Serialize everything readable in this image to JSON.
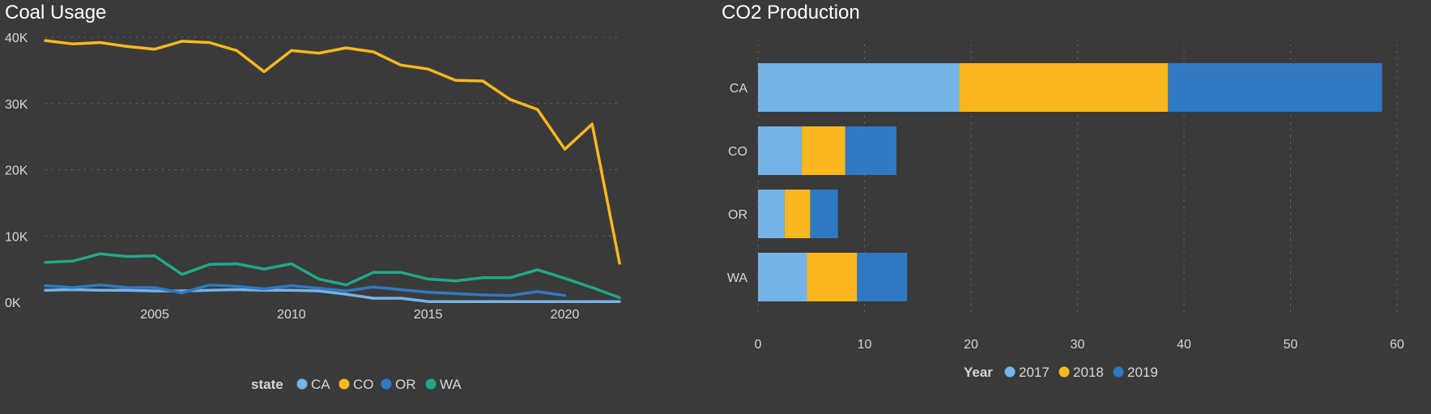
{
  "colors": {
    "CA": "#73b3e7",
    "CO": "#fbb81e",
    "OR": "#2f79c2",
    "WA": "#1fa88a",
    "2017": "#73b3e7",
    "2018": "#fbb81e",
    "2019": "#2f79c2"
  },
  "chart_data": [
    {
      "type": "line",
      "title": "Coal Usage",
      "xlabel": "",
      "ylabel": "",
      "x": [
        2001,
        2002,
        2003,
        2004,
        2005,
        2006,
        2007,
        2008,
        2009,
        2010,
        2011,
        2012,
        2013,
        2014,
        2015,
        2016,
        2017,
        2018,
        2019,
        2020,
        2021,
        2022
      ],
      "xlim": [
        2001,
        2022
      ],
      "ylim": [
        0,
        40000
      ],
      "x_ticks": [
        2005,
        2010,
        2015,
        2020
      ],
      "x_tick_labels": [
        "2005",
        "2010",
        "2015",
        "2020"
      ],
      "y_ticks": [
        0,
        10000,
        20000,
        30000,
        40000
      ],
      "y_tick_labels": [
        "0K",
        "10K",
        "20K",
        "30K",
        "40K"
      ],
      "grid": true,
      "legend_title": "state",
      "legend_position": "bottom",
      "series": [
        {
          "name": "CA",
          "values": [
            1800,
            1900,
            1800,
            1800,
            1700,
            1700,
            1800,
            1900,
            1800,
            1800,
            1700,
            1200,
            600,
            600,
            100,
            100,
            100,
            100,
            100,
            100,
            100,
            100
          ]
        },
        {
          "name": "CO",
          "values": [
            39500,
            39000,
            39200,
            38600,
            38200,
            39400,
            39200,
            38000,
            34800,
            38000,
            37600,
            38400,
            37800,
            35800,
            35200,
            33500,
            33400,
            30600,
            29100,
            23100,
            26900,
            5900
          ]
        },
        {
          "name": "OR",
          "values": [
            2500,
            2200,
            2600,
            2200,
            2200,
            1400,
            2600,
            2400,
            2000,
            2500,
            2100,
            1700,
            2300,
            1900,
            1500,
            1300,
            1100,
            1000,
            1600,
            1000,
            null,
            null
          ]
        },
        {
          "name": "WA",
          "values": [
            6000,
            6200,
            7300,
            6900,
            7000,
            4200,
            5700,
            5800,
            5000,
            5800,
            3500,
            2600,
            4500,
            4500,
            3500,
            3200,
            3700,
            3700,
            4900,
            3600,
            2200,
            700
          ]
        }
      ]
    },
    {
      "type": "bar",
      "orientation": "horizontal",
      "stacked": true,
      "title": "CO2 Production",
      "xlabel": "",
      "ylabel": "",
      "categories": [
        "CA",
        "CO",
        "OR",
        "WA"
      ],
      "xlim": [
        0,
        60
      ],
      "x_ticks": [
        0,
        10,
        20,
        30,
        40,
        50,
        60
      ],
      "x_tick_labels": [
        "0",
        "10",
        "20",
        "30",
        "40",
        "50",
        "60"
      ],
      "grid": true,
      "legend_title": "Year",
      "legend_position": "bottom",
      "series": [
        {
          "name": "2017",
          "values": [
            18.9,
            4.1,
            2.5,
            4.6
          ]
        },
        {
          "name": "2018",
          "values": [
            19.6,
            4.1,
            2.4,
            4.7
          ]
        },
        {
          "name": "2019",
          "values": [
            20.1,
            4.8,
            2.6,
            4.7
          ]
        }
      ]
    }
  ]
}
